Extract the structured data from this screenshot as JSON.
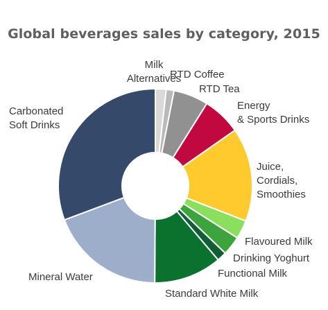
{
  "chart_data": {
    "type": "pie",
    "title": "Global beverages sales by category, 2015",
    "donut": true,
    "start_angle_deg": 0,
    "direction": "clockwise",
    "legend": "none (direct labels)",
    "slices": [
      {
        "label": "Milk Alternatives",
        "value": 1.8,
        "color": "#d9d9d6"
      },
      {
        "label": "RTD Coffee",
        "value": 1.3,
        "color": "#b9b9b9"
      },
      {
        "label": "RTD Tea",
        "value": 5.8,
        "color": "#919191"
      },
      {
        "label": "Energy & Sports Drinks",
        "value": 6.4,
        "color": "#c2093f"
      },
      {
        "label": "Juice, Cordials, Smoothies",
        "value": 15.6,
        "color": "#ffca2e"
      },
      {
        "label": "Flavoured Milk",
        "value": 3.1,
        "color": "#8ae05c"
      },
      {
        "label": "Drinking Yoghurt",
        "value": 3.2,
        "color": "#3da43d"
      },
      {
        "label": "Functional Milk",
        "value": 1.6,
        "color": "#0f5e35"
      },
      {
        "label": "Standard White Milk",
        "value": 11.3,
        "color": "#0a712f"
      },
      {
        "label": "Mineral Water",
        "value": 19.2,
        "color": "#9daecb"
      },
      {
        "label": "Carbonated Soft Drinks",
        "value": 30.7,
        "color": "#354a6b"
      }
    ]
  }
}
